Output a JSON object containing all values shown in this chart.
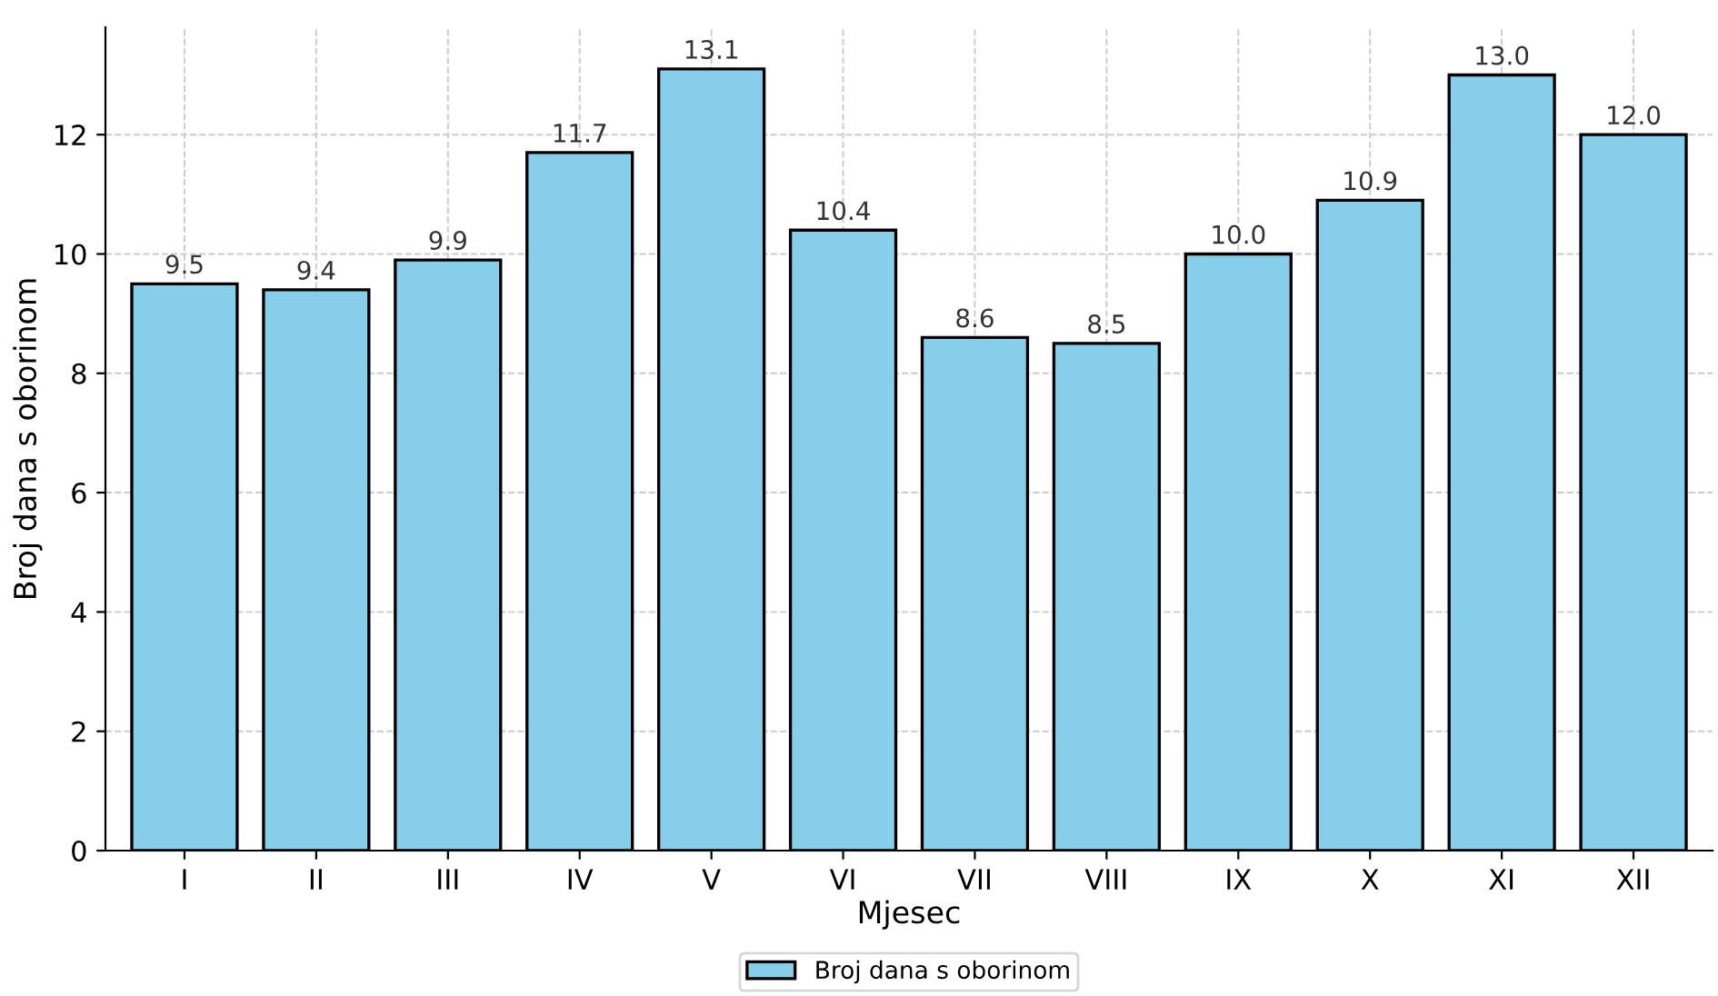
{
  "chart_data": {
    "type": "bar",
    "xlabel": "Mjesec",
    "ylabel": "Broj dana s oborinom",
    "categories": [
      "I",
      "II",
      "III",
      "IV",
      "V",
      "VI",
      "VII",
      "VIII",
      "IX",
      "X",
      "XI",
      "XII"
    ],
    "series": [
      {
        "name": "Broj dana s oborinom",
        "color": "#87ceeb",
        "values": [
          9.5,
          9.4,
          9.9,
          11.7,
          13.1,
          10.4,
          8.6,
          8.5,
          10.0,
          10.9,
          13.0,
          12.0
        ],
        "value_labels": [
          "9.5",
          "9.4",
          "9.9",
          "11.7",
          "13.1",
          "10.4",
          "8.6",
          "8.5",
          "10.0",
          "10.9",
          "13.0",
          "12.0"
        ]
      }
    ],
    "ylim": [
      0,
      13.8
    ],
    "yticks": [
      0,
      2,
      4,
      6,
      8,
      10,
      12
    ],
    "grid": true,
    "legend": "bottom"
  }
}
